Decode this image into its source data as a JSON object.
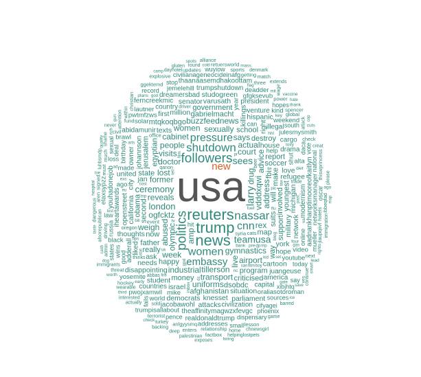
{
  "colors": {
    "word": "#2f8a7c",
    "primary": "#555555",
    "accent": "#e06020",
    "background": "#ffffff"
  },
  "primary_word": {
    "text": "usa"
  },
  "accent_word": {
    "text": "new"
  },
  "large_words": [
    "reuters",
    "trump",
    "news",
    "politics",
    "followers",
    "shutdown",
    "nassar",
    "women",
    "cnn",
    "pressure",
    "embassy",
    "larry",
    "sees",
    "teamusa",
    "london",
    "ceremony"
  ],
  "medium_words": [
    "amp",
    "ogfcktz",
    "vdddxqwi",
    "gymnastics",
    "reveals",
    "former",
    "olympic",
    "doctor",
    "court",
    "drug",
    "lost",
    "abused",
    "address",
    "sexually",
    "tillerson",
    "people",
    "advice",
    "week",
    "live",
    "visits",
    "actual",
    "rex",
    "cabinet",
    "women",
    "buzzfeednews",
    "industrial",
    "says",
    "transport",
    "airport",
    "uniforms",
    "weigh",
    "map",
    "fbi",
    "gabrielmacht",
    "happy",
    "will",
    "now",
    "suits",
    "school",
    "state",
    "second",
    "soccer",
    "make",
    "money",
    "program",
    "egyptian",
    "involved",
    "support",
    "father",
    "destroy",
    "really",
    "afghanistan",
    "jerusalem",
    "youngest",
    "report",
    "way",
    "criticised",
    "mtqkoqbgo",
    "dsobdc",
    "obama",
    "government",
    "house",
    "jan",
    "ask",
    "military",
    "california",
    "killings",
    "johannson",
    "texts",
    "million",
    "israel",
    "right",
    "varusath",
    "knesset",
    "refugee",
    "cartoon",
    "disappointing",
    "thoughts",
    "situation",
    "york",
    "needs",
    "love",
    "student",
    "senator",
    "united",
    "democrats",
    "michigan",
    "attacks",
    "studogreen",
    "hispanic",
    "city",
    "parliament",
    "abidamunir",
    "openstreet",
    "liked",
    "owner",
    "hope",
    "first",
    "venture",
    "illegal",
    "dreamersbad",
    "network",
    "president",
    "civilization",
    "drama",
    "modernism",
    "capital",
    "trumpshutdown",
    "country",
    "america",
    "adderall",
    "countries",
    "theaffinitymagwzxfevgc",
    "juangeuse",
    "realdonaldtrump",
    "iheartawards",
    "thaanaasemdhakoottam",
    "jacobawohl",
    "ferncreekmic",
    "aadnankhanptimooreofkaitlyn",
    "youhadonejob",
    "cargo",
    "gfgksevub",
    "youtube",
    "civilianageneocideinafg",
    "jemelehill",
    "pwtmfzws",
    "networksmanager",
    "oraliasotoroman",
    "pwojxamwil",
    "julesmysmith",
    "shut",
    "weekend",
    "ago",
    "alta",
    "birthday",
    "addresses",
    "mike",
    "yosemite",
    "made",
    "video",
    "online",
    "year",
    "solar",
    "world",
    "black",
    "kind",
    "trumpisallabout",
    "wins",
    "deadder",
    "brawl",
    "lautner",
    "elaxsypzz",
    "cifyagei",
    "xibjhtq",
    "daca",
    "south",
    "help",
    "russia",
    "loss",
    "sources",
    "dispensary",
    "good",
    "today",
    "law",
    "pence",
    "can",
    "hopes",
    "national",
    "states",
    "deal",
    "stop",
    "hit",
    "oscar",
    "vote",
    "fails",
    "sexual",
    "mueller",
    "record",
    "wuyiow",
    "small",
    "phoenix",
    "say"
  ],
  "small_words": [
    "relationship",
    "anlgyysmq",
    "syria",
    "must",
    "oregon",
    "cats",
    "hotels",
    "driving",
    "hockey",
    "three",
    "jlaupqiivf",
    "power",
    "much",
    "updates",
    "thiswprincess",
    "check",
    "fund",
    "getting",
    "global",
    "threat",
    "enters",
    "retuersworld",
    "terrorist",
    "alsorepublican",
    "ggektemd",
    "event",
    "signed",
    "factbox",
    "explosive",
    "attention",
    "next",
    "ibbeqfad",
    "christian",
    "civil",
    "spencer",
    "aren",
    "lesson",
    "office",
    "dangerous",
    "sports",
    "continue",
    "admin",
    "driver",
    "within",
    "wage",
    "attack",
    "home",
    "abbas",
    "qanon",
    "turkey",
    "luhbsmdp",
    "dayhotel",
    "round",
    "actually",
    "immigration",
    "wearable",
    "alliance",
    "immigrants",
    "palestinian",
    "interested",
    "barred",
    "helpinglostpets",
    "thinks",
    "match",
    "chnewsgirl",
    "deep",
    "gluten",
    "sold",
    "denmark",
    "please",
    "creat",
    "extends",
    "backing",
    "never",
    "shame",
    "beer",
    "exposes",
    "game",
    "trade",
    "smart",
    "blog",
    "diet",
    "tax",
    "worth",
    "hhl",
    "third",
    "ago",
    "inbox",
    "hospital",
    "toxy",
    "gpd",
    "plans",
    "thank",
    "flu",
    "tv",
    "bank",
    "fuel",
    "hiring",
    "rights",
    "stm",
    "dp",
    "key",
    "exc",
    "quality",
    "pre",
    "yes",
    "four",
    "spots",
    "vaccine",
    "mass",
    "film",
    "nc",
    "va",
    "gun",
    "lead",
    "check",
    "early",
    "cuts",
    "tell",
    "flag",
    "save",
    "taste",
    "tips",
    "camp",
    "dc",
    "mp",
    "eu",
    "uk",
    "arts",
    "cold",
    "cash",
    "cost",
    "bill",
    "lost",
    "cop",
    "san",
    "god",
    "gate",
    "past",
    "rich",
    "gas",
    "fire",
    "trip",
    "stat",
    "pic",
    "hate",
    "kid",
    "boy",
    "ad",
    "tie",
    "toe",
    "set",
    "map",
    "pr",
    "mit",
    "ice",
    "dog"
  ]
}
